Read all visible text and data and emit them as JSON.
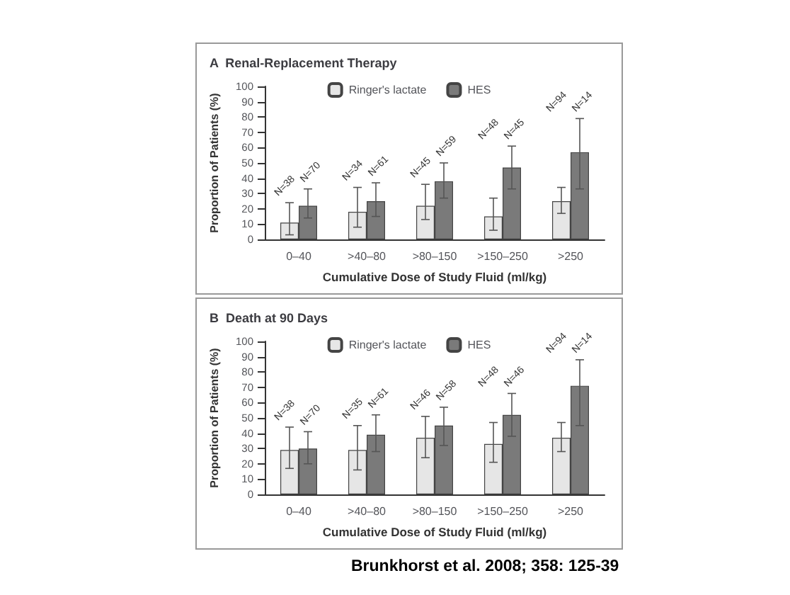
{
  "chart_data": [
    {
      "type": "bar",
      "title": "A  Renal-Replacement Therapy",
      "xlabel": "Cumulative Dose of Study Fluid (ml/kg)",
      "ylabel": "Proportion of Patients (%)",
      "categories": [
        "0–40",
        ">40–80",
        ">80–150",
        ">150–250",
        ">250"
      ],
      "series": [
        {
          "name": "Ringer's lactate",
          "color": "#e6e6e6",
          "values": [
            11,
            18,
            22,
            15,
            25
          ],
          "errors": [
            [
              3,
              24
            ],
            [
              8,
              34
            ],
            [
              13,
              36
            ],
            [
              6,
              27
            ],
            [
              17,
              34
            ]
          ]
        },
        {
          "name": "HES",
          "color": "#7a7a7a",
          "values": [
            22,
            25,
            38,
            47,
            57
          ],
          "errors": [
            [
              14,
              33
            ],
            [
              15,
              37
            ],
            [
              27,
              50
            ],
            [
              33,
              61
            ],
            [
              33,
              79
            ]
          ]
        }
      ],
      "ylim": [
        0,
        100
      ],
      "yticks": [
        0,
        10,
        20,
        30,
        40,
        50,
        60,
        70,
        80,
        90,
        100
      ],
      "grid": false,
      "legend": "top",
      "annotations": [
        {
          "text": "N=38",
          "x": "0–40",
          "y": 24
        },
        {
          "text": "N=70",
          "x": "0–40",
          "y": 33
        },
        {
          "text": "N=34",
          "x": ">40–80",
          "y": 34
        },
        {
          "text": "N=61",
          "x": ">40–80",
          "y": 37
        },
        {
          "text": "N=45",
          "x": ">80–150",
          "y": 36
        },
        {
          "text": "N=59",
          "x": ">80–150",
          "y": 50
        },
        {
          "text": "N=48",
          "x": ">150–250",
          "y": 61
        },
        {
          "text": "N=45",
          "x": ">150–250",
          "y": 61
        },
        {
          "text": "N=94",
          "x": ">250",
          "y": 79
        },
        {
          "text": "N=14",
          "x": ">250",
          "y": 79
        }
      ]
    },
    {
      "type": "bar",
      "title": "B  Death at 90 Days",
      "xlabel": "Cumulative Dose of Study Fluid (ml/kg)",
      "ylabel": "Proportion of Patients (%)",
      "categories": [
        "0–40",
        ">40–80",
        ">80–150",
        ">150–250",
        ">250"
      ],
      "series": [
        {
          "name": "Ringer's lactate",
          "color": "#e6e6e6",
          "values": [
            29,
            29,
            37,
            33,
            37
          ],
          "errors": [
            [
              17,
              44
            ],
            [
              16,
              45
            ],
            [
              24,
              51
            ],
            [
              21,
              47
            ],
            [
              28,
              47
            ]
          ]
        },
        {
          "name": "HES",
          "color": "#7a7a7a",
          "values": [
            30,
            39,
            45,
            52,
            71
          ],
          "errors": [
            [
              20,
              41
            ],
            [
              28,
              52
            ],
            [
              32,
              57
            ],
            [
              38,
              66
            ],
            [
              45,
              88
            ]
          ]
        }
      ],
      "ylim": [
        0,
        100
      ],
      "yticks": [
        0,
        10,
        20,
        30,
        40,
        50,
        60,
        70,
        80,
        90,
        100
      ],
      "grid": false,
      "legend": "top",
      "annotations": [
        {
          "text": "N=38",
          "x": "0–40",
          "y": 44
        },
        {
          "text": "N=70",
          "x": "0–40",
          "y": 41
        },
        {
          "text": "N=35",
          "x": ">40–80",
          "y": 45
        },
        {
          "text": "N=61",
          "x": ">40–80",
          "y": 52
        },
        {
          "text": "N=46",
          "x": ">80–150",
          "y": 51
        },
        {
          "text": "N=58",
          "x": ">80–150",
          "y": 57
        },
        {
          "text": "N=48",
          "x": ">150–250",
          "y": 66
        },
        {
          "text": "N=46",
          "x": ">150–250",
          "y": 66
        },
        {
          "text": "N=94",
          "x": ">250",
          "y": 88
        },
        {
          "text": "N=14",
          "x": ">250",
          "y": 88
        },
        "Brunkhorst et al. 2008; 358: 125-39"
      ]
    }
  ]
}
